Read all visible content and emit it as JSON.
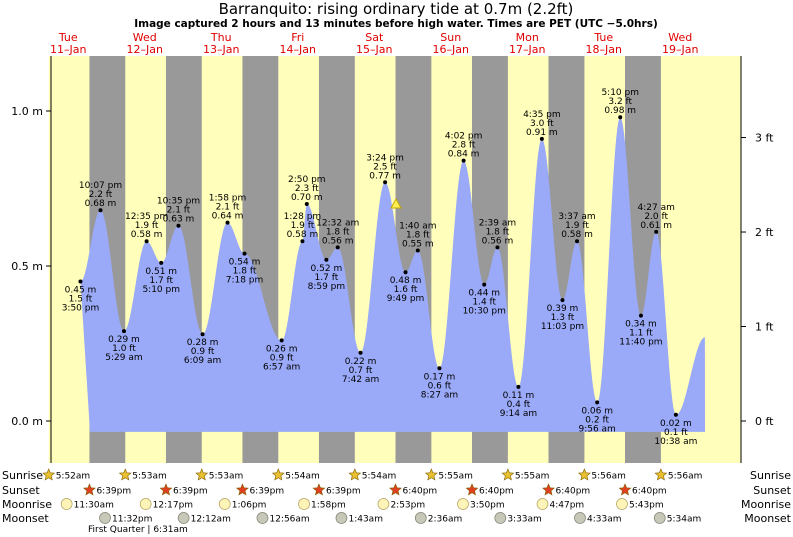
{
  "chart_data": {
    "type": "area",
    "title": "Barranquito: rising  ordinary tide at 0.7m (2.2ft)",
    "subtitle": "Image captured 2 hours and 13 minutes before high water. Times are PET (UTC −5.0hrs)",
    "days": [
      {
        "dow": "Tue",
        "date": "11–Jan"
      },
      {
        "dow": "Wed",
        "date": "12–Jan"
      },
      {
        "dow": "Thu",
        "date": "13–Jan"
      },
      {
        "dow": "Fri",
        "date": "14–Jan"
      },
      {
        "dow": "Sat",
        "date": "15–Jan"
      },
      {
        "dow": "Sun",
        "date": "16–Jan"
      },
      {
        "dow": "Mon",
        "date": "17–Jan"
      },
      {
        "dow": "Tue",
        "date": "18–Jan"
      },
      {
        "dow": "Wed",
        "date": "19–Jan"
      }
    ],
    "left_axis": {
      "unit": "m",
      "ticks": [
        "0.0 m",
        "0.5 m",
        "1.0 m"
      ],
      "values": [
        0,
        0.5,
        1.0
      ]
    },
    "right_axis": {
      "unit": "ft",
      "ticks": [
        "0 ft",
        "1 ft",
        "2 ft",
        "3 ft"
      ],
      "values": [
        0,
        1,
        2,
        3
      ]
    },
    "ylim_m": [
      -0.04,
      1.16
    ],
    "current_level_m": 0.7,
    "extremes": [
      {
        "d": 0,
        "time": "3:50 pm",
        "m": 0.45,
        "ft": "1.5 ft",
        "mlab": "0.45 m",
        "type": "low"
      },
      {
        "d": 0,
        "time": "10:07 pm",
        "m": 0.68,
        "ft": "2.2 ft",
        "mlab": "0.68 m",
        "type": "high"
      },
      {
        "d": 1,
        "time": "5:29 am",
        "m": 0.29,
        "ft": "1.0 ft",
        "mlab": "0.29 m",
        "type": "low"
      },
      {
        "d": 1,
        "time": "12:35 pm",
        "m": 0.58,
        "ft": "1.9 ft",
        "mlab": "0.58 m",
        "type": "high"
      },
      {
        "d": 1,
        "time": "5:10 pm",
        "m": 0.51,
        "ft": "1.7 ft",
        "mlab": "0.51 m",
        "type": "low"
      },
      {
        "d": 1,
        "time": "10:35 pm",
        "m": 0.63,
        "ft": "2.1 ft",
        "mlab": "0.63 m",
        "type": "high"
      },
      {
        "d": 2,
        "time": "6:09 am",
        "m": 0.28,
        "ft": "0.9 ft",
        "mlab": "0.28 m",
        "type": "low"
      },
      {
        "d": 2,
        "time": "1:58 pm",
        "m": 0.64,
        "ft": "2.1 ft",
        "mlab": "0.64 m",
        "type": "high"
      },
      {
        "d": 2,
        "time": "7:18 pm",
        "m": 0.54,
        "ft": "1.8 ft",
        "mlab": "0.54 m",
        "type": "low"
      },
      {
        "d": 3,
        "time": "1:28 pm",
        "m": 0.58,
        "ft": "1.9 ft",
        "mlab": "0.58 m",
        "type": "high"
      },
      {
        "d": 3,
        "time": "6:57 am",
        "m": 0.26,
        "ft": "0.9 ft",
        "mlab": "0.26 m",
        "type": "low"
      },
      {
        "d": 3,
        "time": "2:50 pm",
        "m": 0.7,
        "ft": "2.3 ft",
        "mlab": "0.70 m",
        "type": "high"
      },
      {
        "d": 3,
        "time": "8:59 pm",
        "m": 0.52,
        "ft": "1.7 ft",
        "mlab": "0.52 m",
        "type": "low"
      },
      {
        "d": 4,
        "time": "12:32 am",
        "m": 0.56,
        "ft": "1.8 ft",
        "mlab": "0.56 m",
        "type": "high"
      },
      {
        "d": 4,
        "time": "7:42 am",
        "m": 0.22,
        "ft": "0.7 ft",
        "mlab": "0.22 m",
        "type": "low"
      },
      {
        "d": 4,
        "time": "3:24 pm",
        "m": 0.77,
        "ft": "2.5 ft",
        "mlab": "0.77 m",
        "type": "high"
      },
      {
        "d": 4,
        "time": "9:49 pm",
        "m": 0.48,
        "ft": "1.6 ft",
        "mlab": "0.48 m",
        "type": "low"
      },
      {
        "d": 5,
        "time": "1:40 am",
        "m": 0.55,
        "ft": "1.8 ft",
        "mlab": "0.55 m",
        "type": "high"
      },
      {
        "d": 5,
        "time": "8:27 am",
        "m": 0.17,
        "ft": "0.6 ft",
        "mlab": "0.17 m",
        "type": "low"
      },
      {
        "d": 5,
        "time": "4:02 pm",
        "m": 0.84,
        "ft": "2.8 ft",
        "mlab": "0.84 m",
        "type": "high"
      },
      {
        "d": 5,
        "time": "10:30 pm",
        "m": 0.44,
        "ft": "1.4 ft",
        "mlab": "0.44 m",
        "type": "low"
      },
      {
        "d": 6,
        "time": "2:39 am",
        "m": 0.56,
        "ft": "1.8 ft",
        "mlab": "0.56 m",
        "type": "high"
      },
      {
        "d": 6,
        "time": "9:14 am",
        "m": 0.11,
        "ft": "0.4 ft",
        "mlab": "0.11 m",
        "type": "low"
      },
      {
        "d": 6,
        "time": "4:35 pm",
        "m": 0.91,
        "ft": "3.0 ft",
        "mlab": "0.91 m",
        "type": "high"
      },
      {
        "d": 6,
        "time": "11:03 pm",
        "m": 0.39,
        "ft": "1.3 ft",
        "mlab": "0.39 m",
        "type": "low"
      },
      {
        "d": 7,
        "time": "3:37 am",
        "m": 0.58,
        "ft": "1.9 ft",
        "mlab": "0.58 m",
        "type": "high"
      },
      {
        "d": 7,
        "time": "9:56 am",
        "m": 0.06,
        "ft": "0.2 ft",
        "mlab": "0.06 m",
        "type": "low"
      },
      {
        "d": 7,
        "time": "5:10 pm",
        "m": 0.98,
        "ft": "3.2 ft",
        "mlab": "0.98 m",
        "type": "high"
      },
      {
        "d": 7,
        "time": "11:40 pm",
        "m": 0.34,
        "ft": "1.1 ft",
        "mlab": "0.34 m",
        "type": "low"
      },
      {
        "d": 8,
        "time": "4:27 am",
        "m": 0.61,
        "ft": "2.0 ft",
        "mlab": "0.61 m",
        "type": "high"
      },
      {
        "d": 8,
        "time": "10:38 am",
        "m": 0.02,
        "ft": "0.1 ft",
        "mlab": "0.02 m",
        "type": "low"
      }
    ],
    "astro": {
      "row_labels": {
        "sunrise": "Sunrise",
        "sunset": "Sunset",
        "moonrise": "Moonrise",
        "moonset": "Moonset"
      },
      "sunrise": [
        "5:52am",
        "5:53am",
        "5:53am",
        "5:54am",
        "5:54am",
        "5:55am",
        "5:55am",
        "5:56am",
        "5:56am"
      ],
      "sunset": [
        "6:39pm",
        "6:39pm",
        "6:39pm",
        "6:39pm",
        "6:40pm",
        "6:40pm",
        "6:40pm",
        "6:40pm"
      ],
      "moonrise": [
        "11:30am",
        "12:17pm",
        "1:06pm",
        "1:58pm",
        "2:53pm",
        "3:50pm",
        "4:47pm",
        "5:43pm"
      ],
      "moonset": [
        "11:32pm",
        "12:12am",
        "12:56am",
        "1:43am",
        "2:36am",
        "3:33am",
        "4:33am",
        "5:34am"
      ],
      "moon_phase_note": "First Quarter | 6:31am"
    },
    "colors": {
      "day": "#ffffbb",
      "night": "#999999",
      "outside": "#c8c8c8",
      "tide_fill": "#9aaaf8",
      "day_label": "#e00000",
      "sun_star": "#e8c030",
      "sunset_star": "#e04020",
      "moonrise": "#fff4b8",
      "moonset": "#c8c8b8"
    }
  }
}
